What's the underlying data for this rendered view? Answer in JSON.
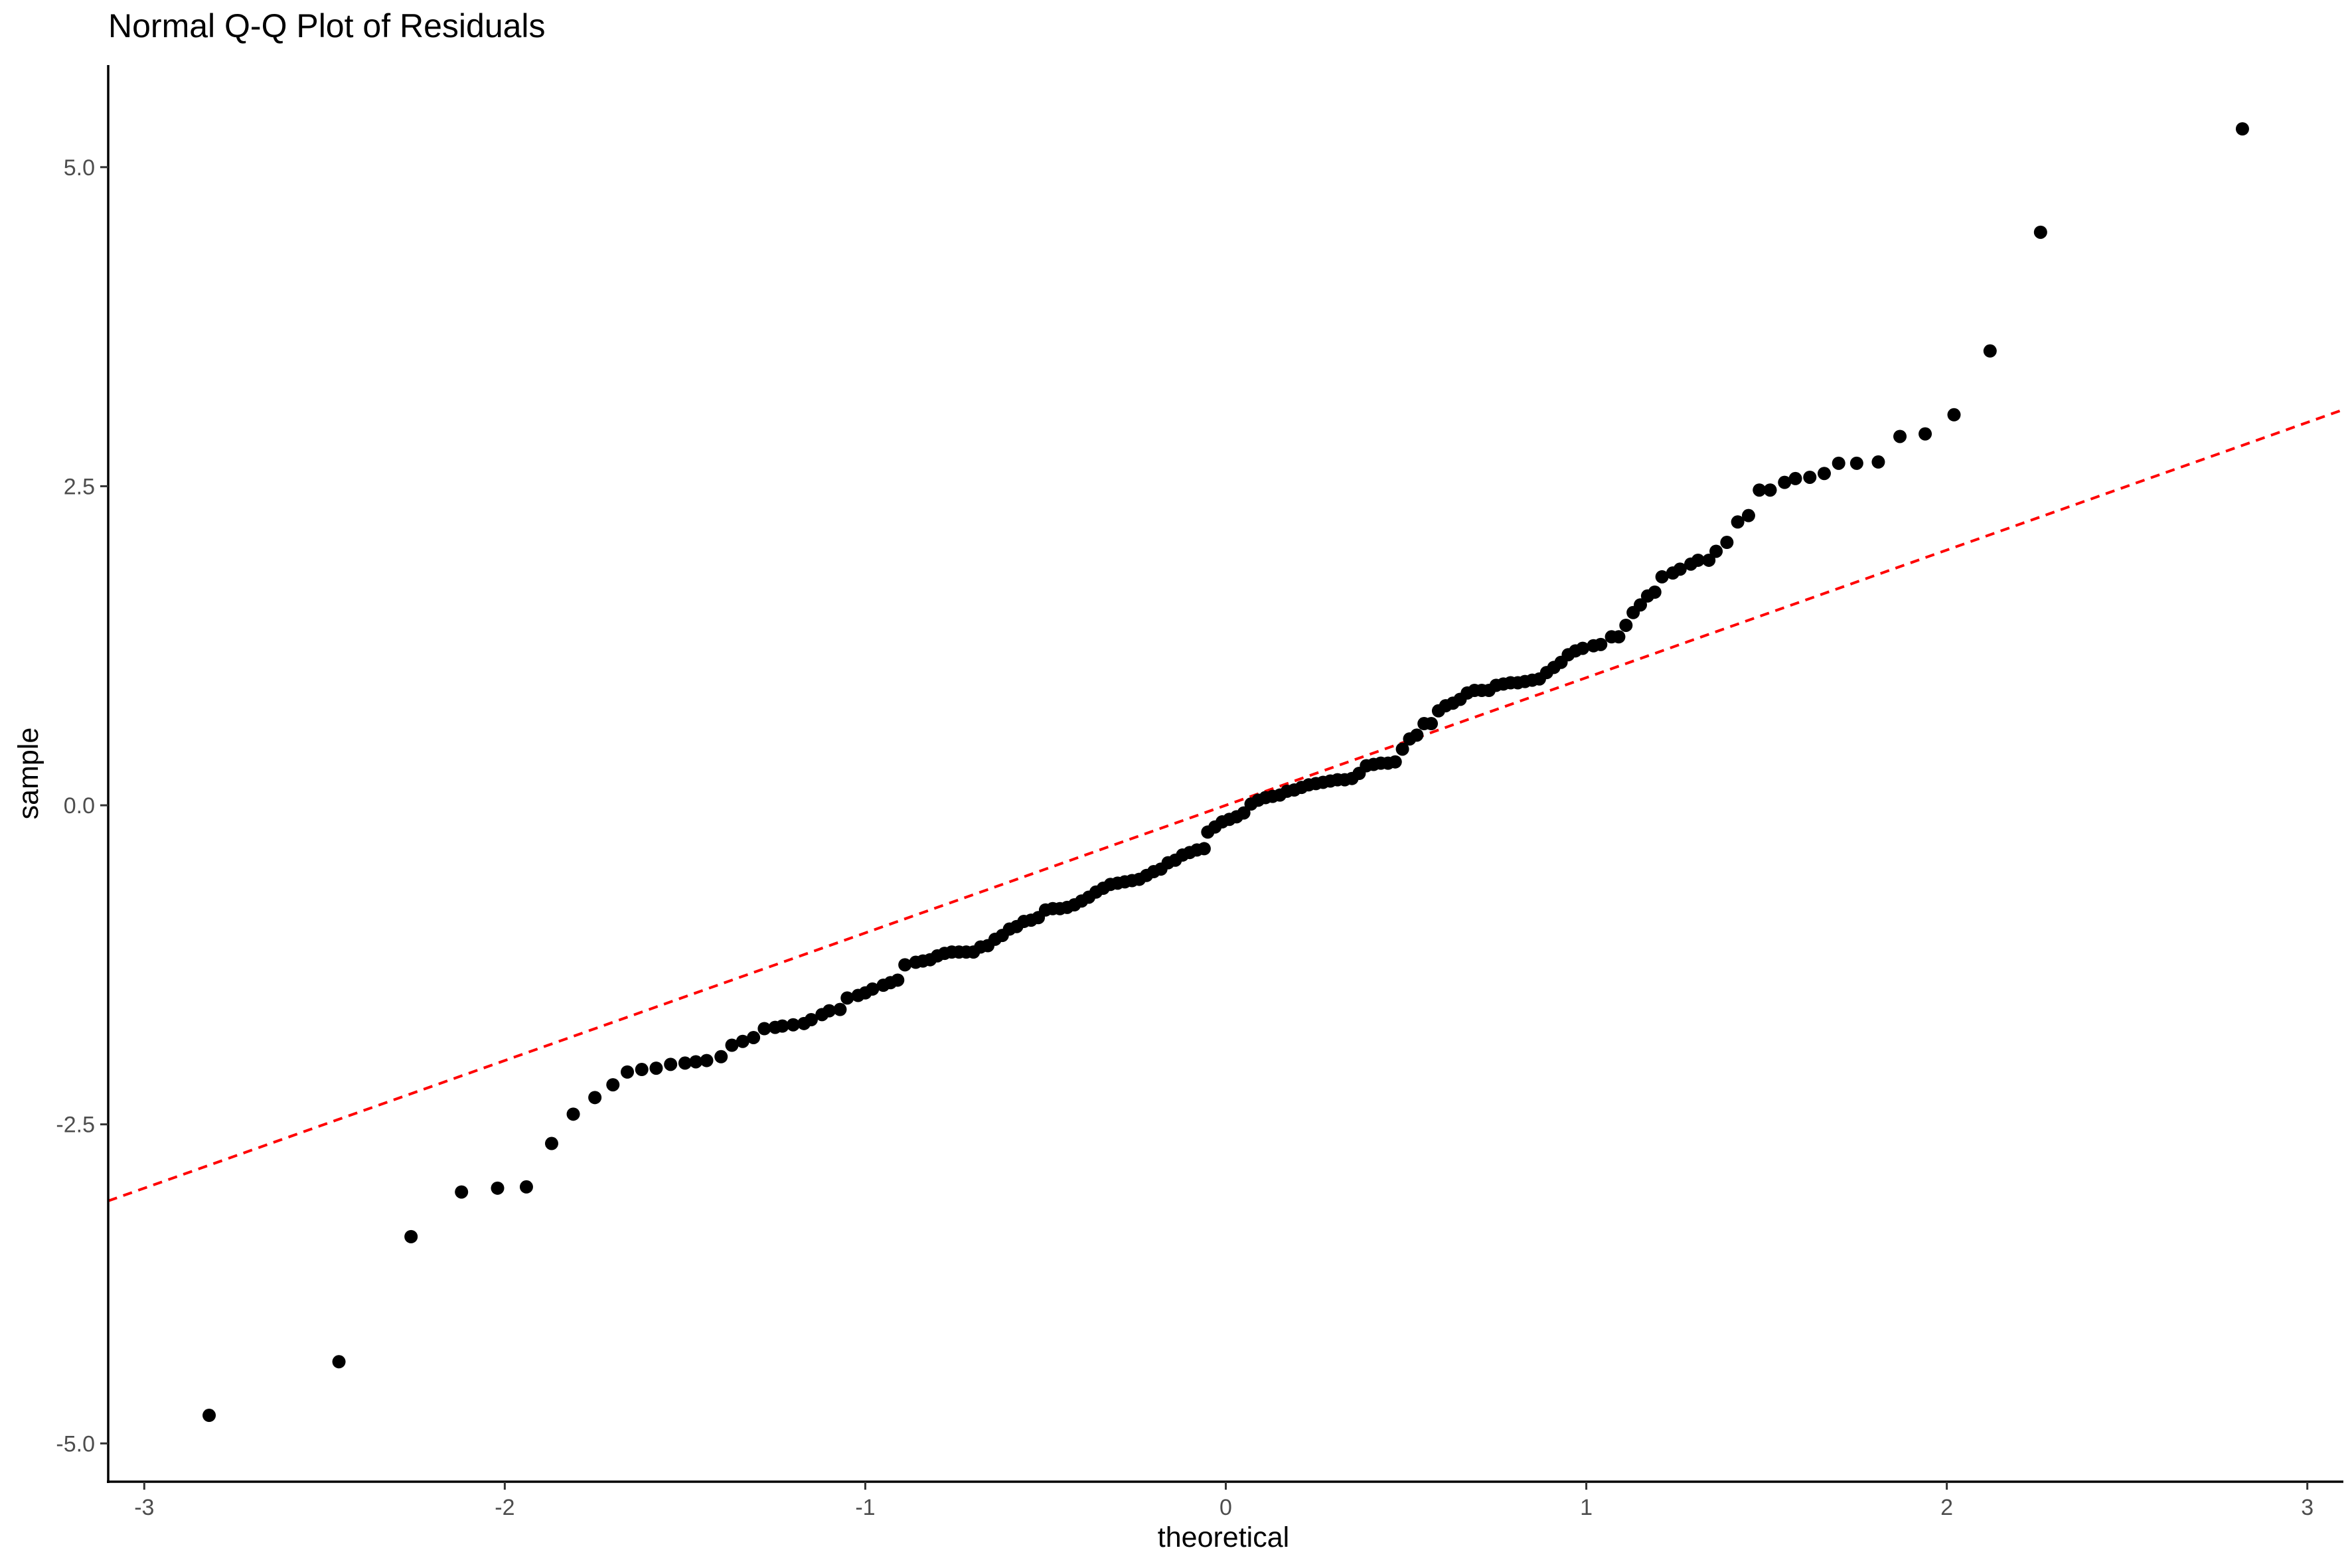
{
  "chart_data": {
    "type": "scatter",
    "title": "Normal Q-Q Plot of Residuals",
    "xlabel": "theoretical",
    "ylabel": "sample",
    "xlim": [
      -3.1,
      3.1
    ],
    "ylim": [
      -5.3,
      5.8
    ],
    "xticks": [
      {
        "value": -3,
        "label": "-3"
      },
      {
        "value": -2,
        "label": "-2"
      },
      {
        "value": -1,
        "label": "-1"
      },
      {
        "value": 0,
        "label": "0"
      },
      {
        "value": 1,
        "label": "1"
      },
      {
        "value": 2,
        "label": "2"
      },
      {
        "value": 3,
        "label": "3"
      }
    ],
    "yticks": [
      {
        "value": 5,
        "label": "5.0"
      },
      {
        "value": 2.5,
        "label": "2.5"
      },
      {
        "value": 0,
        "label": "0.0"
      },
      {
        "value": -2.5,
        "label": "-2.5"
      },
      {
        "value": -5,
        "label": "-5.0"
      }
    ],
    "grid": false,
    "reference_line": {
      "slope": 1.0,
      "intercept": 0.0,
      "style": "dashed",
      "color": "#ff0000"
    },
    "point_color": "#000000",
    "points": [
      [
        -2.82,
        -4.78
      ],
      [
        -2.46,
        -4.36
      ],
      [
        -2.26,
        -3.38
      ],
      [
        -2.12,
        -3.03
      ],
      [
        -2.02,
        -3.0
      ],
      [
        -1.94,
        -2.99
      ],
      [
        -1.87,
        -2.65
      ],
      [
        -1.81,
        -2.42
      ],
      [
        -1.75,
        -2.29
      ],
      [
        -1.7,
        -2.19
      ],
      [
        -1.66,
        -2.09
      ],
      [
        -1.62,
        -2.07
      ],
      [
        -1.58,
        -2.06
      ],
      [
        -1.54,
        -2.03
      ],
      [
        -1.5,
        -2.02
      ],
      [
        -1.47,
        -2.01
      ],
      [
        -1.44,
        -2.0
      ],
      [
        -1.4,
        -1.97
      ],
      [
        -1.37,
        -1.88
      ],
      [
        -1.34,
        -1.85
      ],
      [
        -1.31,
        -1.82
      ],
      [
        -1.28,
        -1.75
      ],
      [
        -1.25,
        -1.74
      ],
      [
        -1.23,
        -1.73
      ],
      [
        -1.2,
        -1.72
      ],
      [
        -1.17,
        -1.71
      ],
      [
        -1.15,
        -1.68
      ],
      [
        -1.12,
        -1.64
      ],
      [
        -1.1,
        -1.61
      ],
      [
        -1.07,
        -1.6
      ],
      [
        -1.05,
        -1.51
      ],
      [
        -1.02,
        -1.49
      ],
      [
        -1.0,
        -1.47
      ],
      [
        -0.98,
        -1.44
      ],
      [
        -0.95,
        -1.41
      ],
      [
        -0.93,
        -1.39
      ],
      [
        -0.91,
        -1.37
      ],
      [
        -0.89,
        -1.25
      ],
      [
        -0.86,
        -1.23
      ],
      [
        -0.84,
        -1.22
      ],
      [
        -0.82,
        -1.21
      ],
      [
        -0.8,
        -1.18
      ],
      [
        -0.78,
        -1.16
      ],
      [
        -0.76,
        -1.15
      ],
      [
        -0.74,
        -1.15
      ],
      [
        -0.72,
        -1.15
      ],
      [
        -0.7,
        -1.15
      ],
      [
        -0.68,
        -1.11
      ],
      [
        -0.66,
        -1.1
      ],
      [
        -0.64,
        -1.05
      ],
      [
        -0.62,
        -1.02
      ],
      [
        -0.6,
        -0.97
      ],
      [
        -0.58,
        -0.95
      ],
      [
        -0.56,
        -0.91
      ],
      [
        -0.54,
        -0.9
      ],
      [
        -0.52,
        -0.88
      ],
      [
        -0.5,
        -0.82
      ],
      [
        -0.48,
        -0.81
      ],
      [
        -0.46,
        -0.81
      ],
      [
        -0.44,
        -0.8
      ],
      [
        -0.42,
        -0.78
      ],
      [
        -0.4,
        -0.75
      ],
      [
        -0.38,
        -0.72
      ],
      [
        -0.36,
        -0.68
      ],
      [
        -0.34,
        -0.65
      ],
      [
        -0.32,
        -0.62
      ],
      [
        -0.3,
        -0.61
      ],
      [
        -0.28,
        -0.6
      ],
      [
        -0.26,
        -0.59
      ],
      [
        -0.24,
        -0.58
      ],
      [
        -0.22,
        -0.55
      ],
      [
        -0.2,
        -0.52
      ],
      [
        -0.18,
        -0.5
      ],
      [
        -0.16,
        -0.45
      ],
      [
        -0.14,
        -0.43
      ],
      [
        -0.12,
        -0.39
      ],
      [
        -0.1,
        -0.37
      ],
      [
        -0.08,
        -0.35
      ],
      [
        -0.06,
        -0.34
      ],
      [
        -0.05,
        -0.21
      ],
      [
        -0.03,
        -0.17
      ],
      [
        -0.01,
        -0.13
      ],
      [
        0.01,
        -0.11
      ],
      [
        0.03,
        -0.09
      ],
      [
        0.05,
        -0.06
      ],
      [
        0.07,
        0.01
      ],
      [
        0.09,
        0.04
      ],
      [
        0.11,
        0.06
      ],
      [
        0.13,
        0.07
      ],
      [
        0.15,
        0.08
      ],
      [
        0.17,
        0.11
      ],
      [
        0.19,
        0.12
      ],
      [
        0.21,
        0.14
      ],
      [
        0.23,
        0.16
      ],
      [
        0.25,
        0.17
      ],
      [
        0.27,
        0.18
      ],
      [
        0.29,
        0.19
      ],
      [
        0.31,
        0.2
      ],
      [
        0.33,
        0.2
      ],
      [
        0.35,
        0.21
      ],
      [
        0.37,
        0.25
      ],
      [
        0.39,
        0.31
      ],
      [
        0.41,
        0.32
      ],
      [
        0.43,
        0.33
      ],
      [
        0.45,
        0.33
      ],
      [
        0.47,
        0.34
      ],
      [
        0.49,
        0.44
      ],
      [
        0.51,
        0.52
      ],
      [
        0.53,
        0.55
      ],
      [
        0.55,
        0.64
      ],
      [
        0.57,
        0.64
      ],
      [
        0.59,
        0.74
      ],
      [
        0.61,
        0.78
      ],
      [
        0.63,
        0.8
      ],
      [
        0.65,
        0.83
      ],
      [
        0.67,
        0.88
      ],
      [
        0.69,
        0.9
      ],
      [
        0.71,
        0.9
      ],
      [
        0.73,
        0.9
      ],
      [
        0.75,
        0.94
      ],
      [
        0.77,
        0.95
      ],
      [
        0.79,
        0.96
      ],
      [
        0.81,
        0.96
      ],
      [
        0.83,
        0.97
      ],
      [
        0.85,
        0.98
      ],
      [
        0.87,
        0.99
      ],
      [
        0.89,
        1.04
      ],
      [
        0.91,
        1.08
      ],
      [
        0.93,
        1.12
      ],
      [
        0.95,
        1.18
      ],
      [
        0.97,
        1.21
      ],
      [
        0.99,
        1.23
      ],
      [
        1.02,
        1.25
      ],
      [
        1.04,
        1.26
      ],
      [
        1.07,
        1.32
      ],
      [
        1.09,
        1.32
      ],
      [
        1.11,
        1.41
      ],
      [
        1.13,
        1.51
      ],
      [
        1.15,
        1.57
      ],
      [
        1.17,
        1.64
      ],
      [
        1.19,
        1.67
      ],
      [
        1.21,
        1.79
      ],
      [
        1.24,
        1.82
      ],
      [
        1.26,
        1.85
      ],
      [
        1.29,
        1.89
      ],
      [
        1.31,
        1.92
      ],
      [
        1.34,
        1.92
      ],
      [
        1.36,
        1.99
      ],
      [
        1.39,
        2.06
      ],
      [
        1.42,
        2.22
      ],
      [
        1.45,
        2.27
      ],
      [
        1.48,
        2.47
      ],
      [
        1.51,
        2.47
      ],
      [
        1.55,
        2.53
      ],
      [
        1.58,
        2.56
      ],
      [
        1.62,
        2.57
      ],
      [
        1.66,
        2.6
      ],
      [
        1.7,
        2.68
      ],
      [
        1.75,
        2.68
      ],
      [
        1.81,
        2.69
      ],
      [
        1.87,
        2.89
      ],
      [
        1.94,
        2.91
      ],
      [
        2.02,
        3.06
      ],
      [
        2.12,
        3.56
      ],
      [
        2.26,
        4.49
      ],
      [
        2.82,
        5.3
      ]
    ]
  }
}
